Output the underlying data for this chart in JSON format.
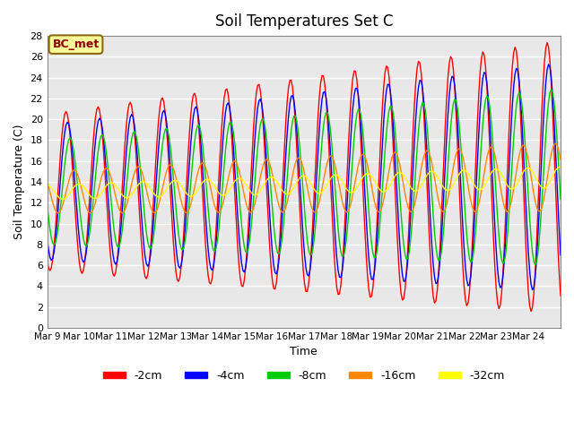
{
  "title": "Soil Temperatures Set C",
  "xlabel": "Time",
  "ylabel": "Soil Temperature (C)",
  "annotation": "BC_met",
  "annotation_color": "#8B0000",
  "annotation_bg": "#FFFF99",
  "annotation_border": "#8B6914",
  "ylim": [
    0,
    28
  ],
  "yticks": [
    0,
    2,
    4,
    6,
    8,
    10,
    12,
    14,
    16,
    18,
    20,
    22,
    24,
    26,
    28
  ],
  "xtick_labels": [
    "Mar 9",
    "Mar 10",
    "Mar 11",
    "Mar 12",
    "Mar 13",
    "Mar 14",
    "Mar 15",
    "Mar 16",
    "Mar 17",
    "Mar 18",
    "Mar 19",
    "Mar 20",
    "Mar 21",
    "Mar 22",
    "Mar 23",
    "Mar 24"
  ],
  "series": [
    {
      "label": "-2cm",
      "color": "#FF0000"
    },
    {
      "label": "-4cm",
      "color": "#0000FF"
    },
    {
      "label": "-8cm",
      "color": "#00CC00"
    },
    {
      "label": "-16cm",
      "color": "#FF8800"
    },
    {
      "label": "-32cm",
      "color": "#FFFF00"
    }
  ],
  "background_color": "#E8E8E8",
  "grid_color": "#FFFFFF",
  "n_days": 16,
  "points_per_day": 24,
  "base_mean": 13.0,
  "mean_slope": 0.09,
  "amplitudes": [
    7.5,
    6.5,
    5.0,
    2.0,
    0.7
  ],
  "amp_slopes": [
    0.35,
    0.28,
    0.22,
    0.08,
    0.02
  ],
  "phase_offsets": [
    0.0,
    0.3,
    0.8,
    1.6,
    2.5
  ],
  "period_hours": 24
}
